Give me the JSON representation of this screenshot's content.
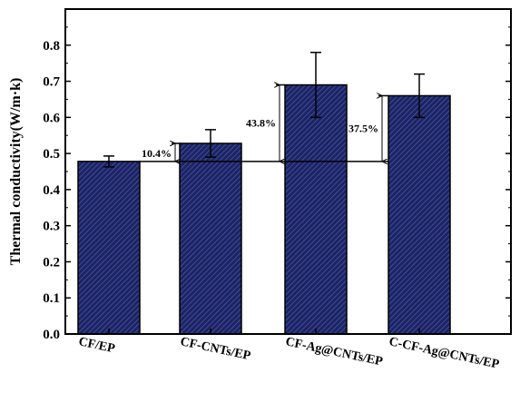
{
  "chart_data": {
    "type": "bar",
    "categories": [
      "CF/EP",
      "CF-CNTs/EP",
      "CF-Ag@CNTs/EP",
      "C-CF-Ag@CNTs/EP"
    ],
    "values": [
      0.478,
      0.528,
      0.69,
      0.66
    ],
    "errors": [
      0.015,
      0.038,
      0.09,
      0.06
    ],
    "baseline": 0.478,
    "annotations": [
      "10.4%",
      "43.8%",
      "37.5%"
    ],
    "ylabel": "Thermal conductivity(W/m·k)",
    "xlabel": "",
    "ylim": [
      0.0,
      0.9
    ],
    "yticks": [
      "0.0",
      "0.1",
      "0.2",
      "0.3",
      "0.4",
      "0.5",
      "0.6",
      "0.7",
      "0.8"
    ],
    "grid": false,
    "bar_color": "#1c2468",
    "hatch_color": "#5a64a0"
  }
}
